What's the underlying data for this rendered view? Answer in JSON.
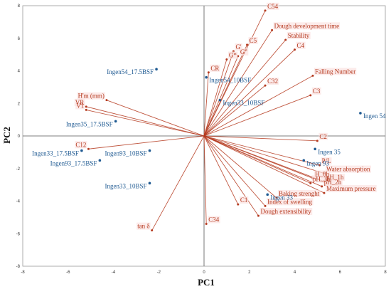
{
  "chart_data": {
    "type": "scatter",
    "title": "",
    "xlabel": "PC1",
    "ylabel": "PC2",
    "xlim": [
      -8,
      8
    ],
    "ylim": [
      -8,
      8
    ],
    "xticks": [
      -8,
      -6,
      -4,
      -2,
      0,
      2,
      4,
      6,
      8
    ],
    "yticks": [
      -8,
      -6,
      -4,
      -2,
      0,
      2,
      4,
      6,
      8
    ],
    "grid": false,
    "colors": {
      "variables": "#b53a1f",
      "samples": "#1f5a92",
      "label_bg": "#fbe3e1",
      "axes": "#9a9a9a"
    },
    "variables": [
      {
        "name": "C54",
        "x": 2.7,
        "y": 7.7
      },
      {
        "name": "Dough development time",
        "x": 3.0,
        "y": 6.5
      },
      {
        "name": "C5",
        "x": 1.9,
        "y": 5.6
      },
      {
        "name": "G'",
        "x": 1.3,
        "y": 5.2
      },
      {
        "name": "G\"",
        "x": 1.5,
        "y": 4.9
      },
      {
        "name": "G*",
        "x": 1.0,
        "y": 4.7
      },
      {
        "name": "Stability",
        "x": 3.6,
        "y": 5.9
      },
      {
        "name": "C4",
        "x": 4.0,
        "y": 5.3
      },
      {
        "name": "CR",
        "x": 0.2,
        "y": 3.9
      },
      {
        "name": "Falling Number",
        "x": 4.8,
        "y": 3.7
      },
      {
        "name": "C32",
        "x": 2.7,
        "y": 3.1
      },
      {
        "name": "C3",
        "x": 4.7,
        "y": 2.5
      },
      {
        "name": "H'm (mm)",
        "x": -4.3,
        "y": 2.2
      },
      {
        "name": "VR",
        "x": -5.2,
        "y": 1.8
      },
      {
        "name": "V1",
        "x": -5.2,
        "y": 1.6
      },
      {
        "name": "C2",
        "x": 5.0,
        "y": -0.3
      },
      {
        "name": "C12",
        "x": -5.1,
        "y": -0.8
      },
      {
        "name": "P/L",
        "x": 5.1,
        "y": -1.8
      },
      {
        "name": "Water absorption",
        "x": 5.3,
        "y": -2.3
      },
      {
        "name": "H_0h",
        "x": 4.8,
        "y": -2.6
      },
      {
        "name": "pH_1h",
        "x": 5.3,
        "y": -2.8
      },
      {
        "name": "pH_3h",
        "x": 4.7,
        "y": -2.9
      },
      {
        "name": "pH_2h",
        "x": 5.2,
        "y": -3.1
      },
      {
        "name": "Maximum pressure",
        "x": 5.3,
        "y": -3.5
      },
      {
        "name": "Baking strenght",
        "x": 3.2,
        "y": -3.8
      },
      {
        "name": "Index of swelling",
        "x": 2.7,
        "y": -4.3
      },
      {
        "name": "C1",
        "x": 1.5,
        "y": -4.2
      },
      {
        "name": "Dough extensibility",
        "x": 2.4,
        "y": -4.9
      },
      {
        "name": "C34",
        "x": 0.1,
        "y": -5.4
      },
      {
        "name": "tan δ",
        "x": -2.3,
        "y": -5.8
      }
    ],
    "samples": [
      {
        "name": "Ingen54_17.5BSF",
        "x": -2.1,
        "y": 4.1
      },
      {
        "name": "Ingen54_10BSF",
        "x": 0.1,
        "y": 3.6
      },
      {
        "name": "Ingen33_10BSF",
        "x": 0.7,
        "y": 2.2
      },
      {
        "name": "Ingen 54",
        "x": 6.9,
        "y": 1.4
      },
      {
        "name": "Ingen35_17.5BSF",
        "x": -3.9,
        "y": 0.9
      },
      {
        "name": "Ingen 35",
        "x": 4.9,
        "y": -0.8
      },
      {
        "name": "Ingen93_10BSF",
        "x": -2.4,
        "y": -0.9
      },
      {
        "name": "Ingen33_17.5BSF",
        "x": -5.4,
        "y": -0.9
      },
      {
        "name": "Ingen93_17.5BSF",
        "x": -4.6,
        "y": -1.5
      },
      {
        "name": "Ingen 93",
        "x": 4.4,
        "y": -1.5
      },
      {
        "name": "Ingen33_10BSF",
        "x": -2.4,
        "y": -2.9
      },
      {
        "name": "Ingen 33",
        "x": 2.8,
        "y": -3.6
      }
    ]
  }
}
